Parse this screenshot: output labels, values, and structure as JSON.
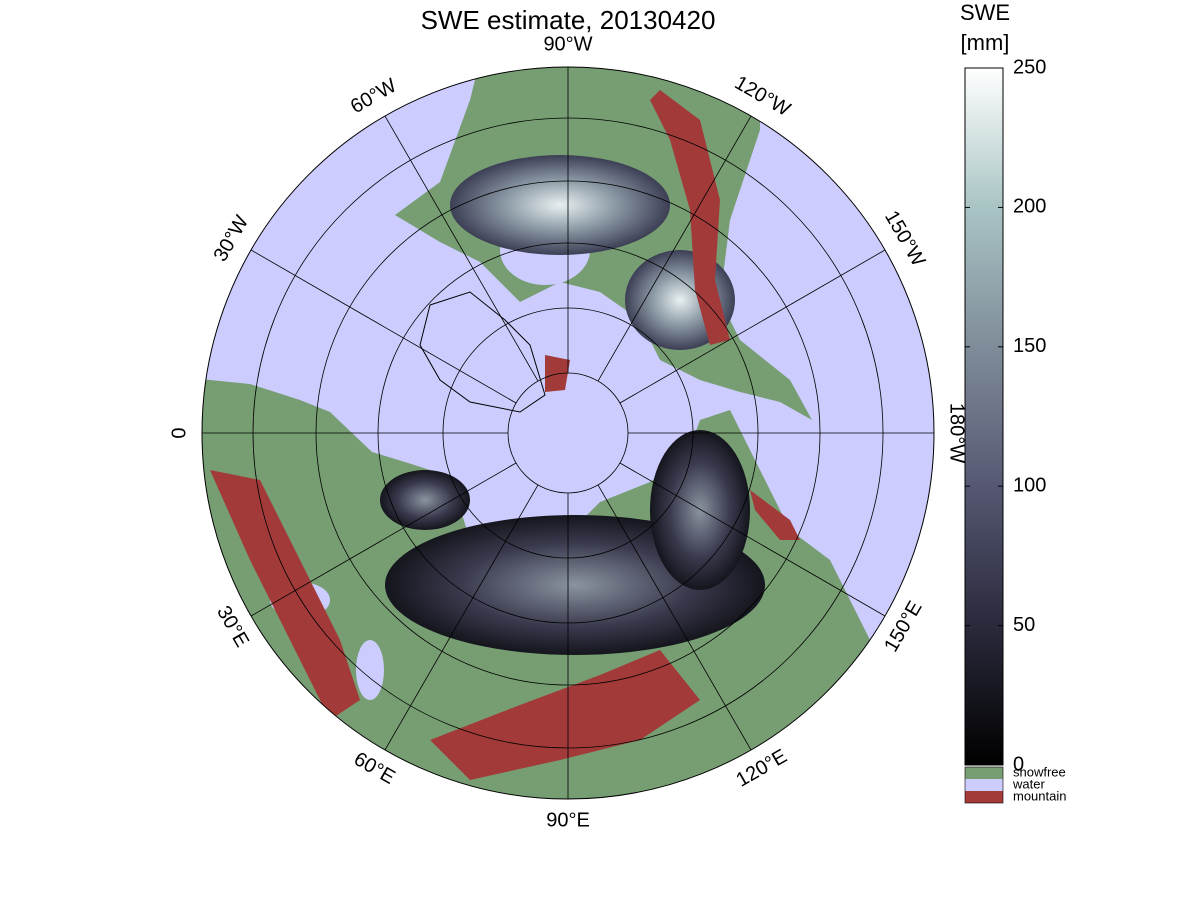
{
  "title": "SWE estimate, 20130420",
  "meridian_labels": [
    "90°W",
    "120°W",
    "150°W",
    "180°W",
    "150°E",
    "120°E",
    "90°E",
    "60°E",
    "30°E",
    "0",
    "30°W",
    "60°W"
  ],
  "colorbar": {
    "title_lines": [
      "SWE",
      "[mm]"
    ],
    "lim": [
      0,
      250
    ],
    "ticks": [
      0,
      50,
      100,
      150,
      200,
      250
    ],
    "colors": [
      "#000000",
      "#2a2a3c",
      "#565873",
      "#7f8c99",
      "#a9c4c4",
      "#ffffff"
    ]
  },
  "legend": [
    {
      "label": "snowfree",
      "color": "#769e72"
    },
    {
      "label": "water",
      "color": "#ccccff"
    },
    {
      "label": "mountain",
      "color": "#a33a3a"
    }
  ]
}
